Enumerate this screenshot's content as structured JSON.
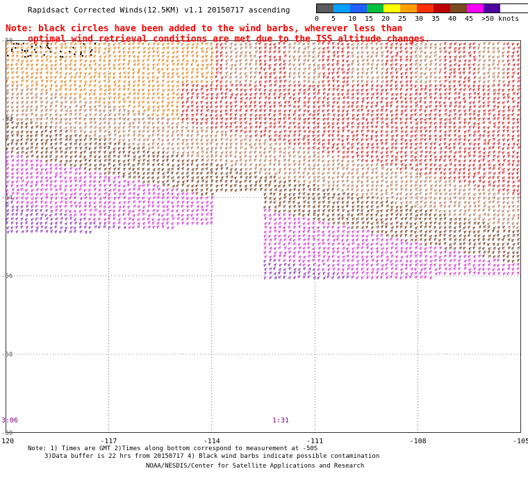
{
  "title": "Rapidsact Corrected Winds(12.5KM) v1.1 20150717 ascending",
  "legend": {
    "labels": [
      "0",
      "5",
      "10",
      "15",
      "20",
      "25",
      "30",
      "35",
      "40",
      "45",
      ">50 knots"
    ],
    "colors": [
      "#5a5a5a",
      "#00a0ff",
      "#2060ff",
      "#00c040",
      "#ffff00",
      "#ffa000",
      "#ff3000",
      "#c00000",
      "#7a4a20",
      "#ff00ff",
      "#5000a0"
    ]
  },
  "note": {
    "line1": "Note: black circles have been added to the wind barbs, wherever less than",
    "line2": "optimal wind retrieval conditions are met due to the ISS altitude changes."
  },
  "map": {
    "lon_range": [
      -120,
      -105
    ],
    "lat_range": [
      -60,
      -50
    ],
    "x_ticks": [
      "-120",
      "-117",
      "-114",
      "-111",
      "-108",
      "-105"
    ],
    "y_ticks": [
      "-50",
      "-52",
      "-54",
      "-56",
      "-58",
      "-60"
    ],
    "pass_times": [
      "3:06",
      "1:31"
    ]
  },
  "footnotes": {
    "line1": "Note: 1) Times are GMT 2)Times along bottom correspond to measurement at -50S",
    "line2": "3)Data buffer is 22 hrs from 20150717 4) Black wind barbs indicate possible contamination"
  },
  "credit": "NOAA/NESDIS/Center for Satellite Applications and Research"
}
